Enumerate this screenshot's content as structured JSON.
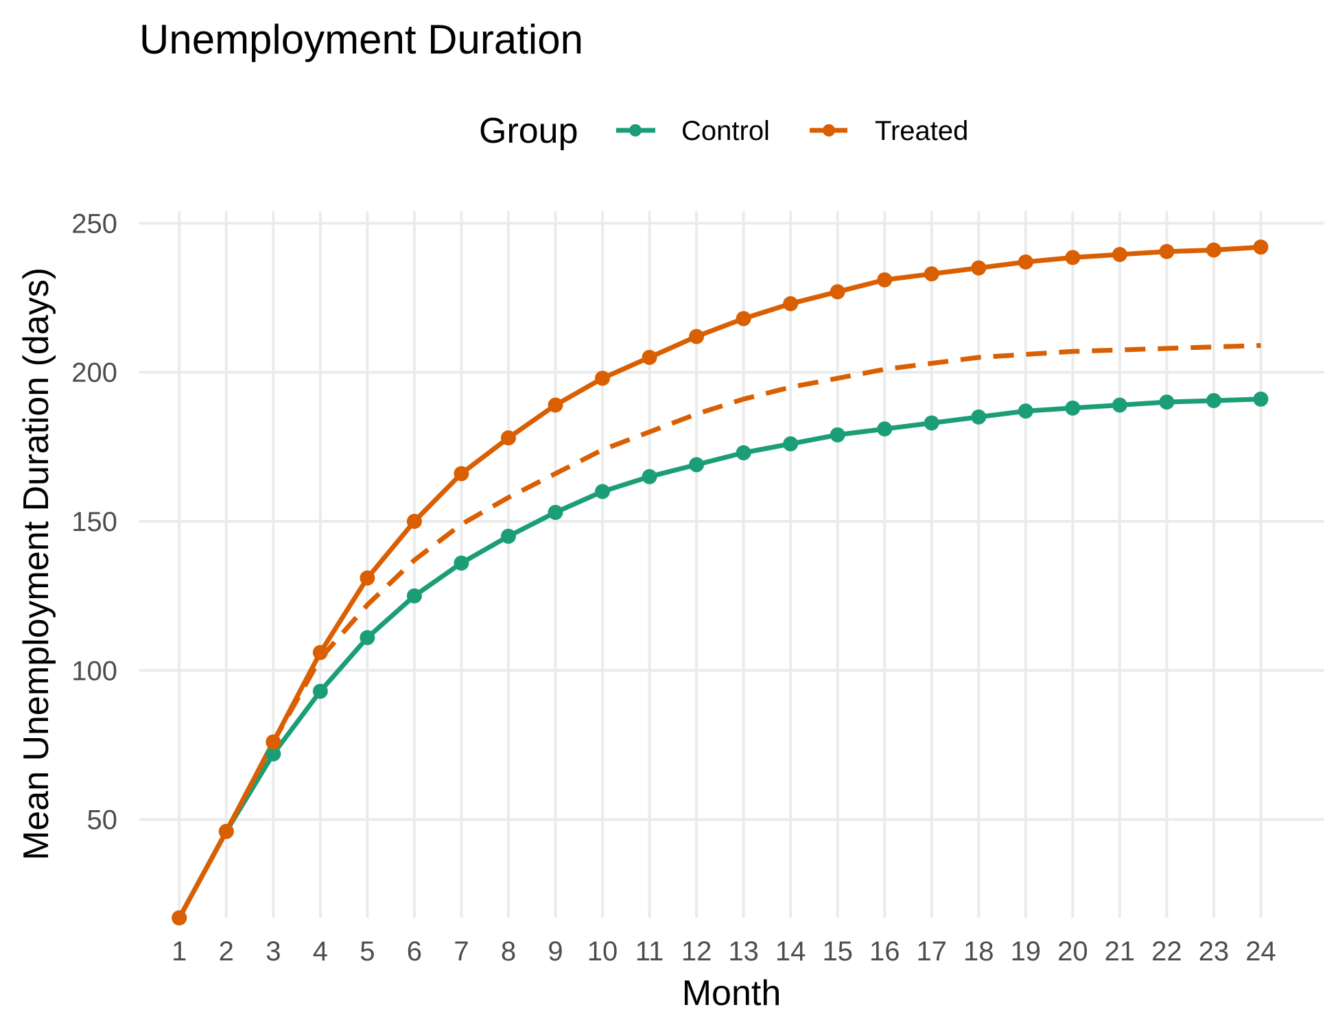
{
  "chart_data": {
    "type": "line",
    "title": "Unemployment Duration",
    "xlabel": "Month",
    "ylabel": "Mean Unemployment Duration (days)",
    "x": [
      1,
      2,
      3,
      4,
      5,
      6,
      7,
      8,
      9,
      10,
      11,
      12,
      13,
      14,
      15,
      16,
      17,
      18,
      19,
      20,
      21,
      22,
      23,
      24
    ],
    "x_ticks": [
      "1",
      "2",
      "3",
      "4",
      "5",
      "6",
      "7",
      "8",
      "9",
      "10",
      "11",
      "12",
      "13",
      "14",
      "15",
      "16",
      "17",
      "18",
      "19",
      "20",
      "21",
      "22",
      "23",
      "24"
    ],
    "y_ticks": [
      50,
      100,
      150,
      200,
      250
    ],
    "xlim": [
      0.15,
      25.35
    ],
    "ylim": [
      17,
      254
    ],
    "grid": true,
    "legend": {
      "title": "Group",
      "placement": "top"
    },
    "series": [
      {
        "name": "Control",
        "color": "#1b9e77",
        "style": "solid",
        "markers": true,
        "values": [
          17,
          46,
          72,
          93,
          111,
          125,
          136,
          145,
          153,
          160,
          165,
          169,
          173,
          176,
          179,
          181,
          183,
          185,
          187,
          188,
          189,
          190,
          190.5,
          191
        ]
      },
      {
        "name": "Treated",
        "color": "#d95f02",
        "style": "solid",
        "markers": true,
        "values": [
          17,
          46,
          76,
          106,
          131,
          150,
          166,
          178,
          189,
          198,
          205,
          212,
          218,
          223,
          227,
          231,
          233,
          235,
          237,
          238.5,
          239.5,
          240.5,
          241,
          242
        ]
      },
      {
        "name": "Treated",
        "color": "#d95f02",
        "style": "dashed",
        "markers": false,
        "legend": false,
        "values": [
          17,
          46,
          76,
          104,
          122,
          137,
          149,
          158,
          166,
          174,
          180,
          186,
          191,
          195,
          198,
          201,
          203,
          205,
          206,
          207,
          207.5,
          208,
          208.5,
          209
        ]
      }
    ]
  }
}
